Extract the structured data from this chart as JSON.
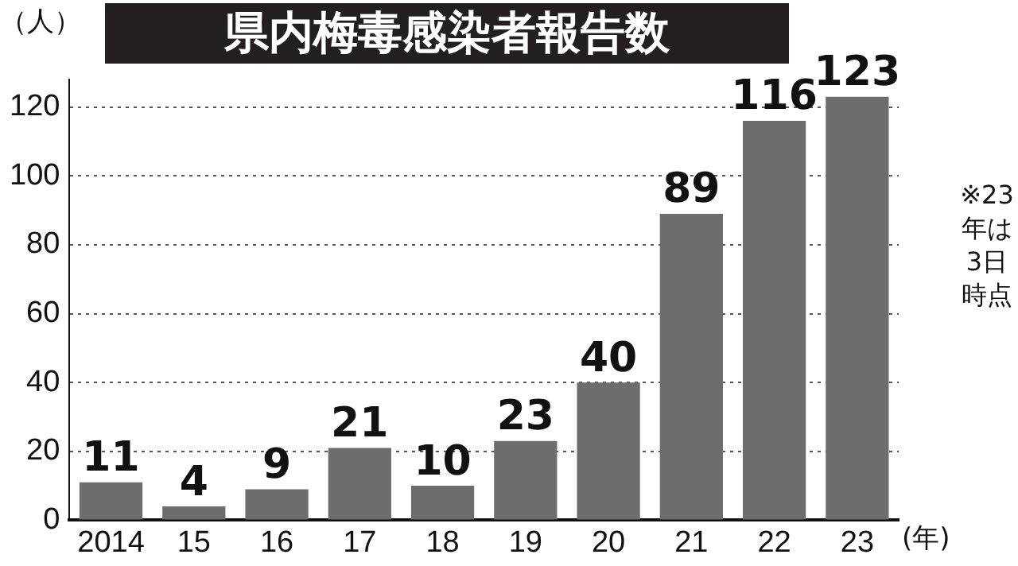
{
  "chart_data": {
    "type": "bar",
    "title": "県内梅毒感染者報告数",
    "ylabel": "（人）",
    "xlabel": "(年)",
    "categories": [
      "2014",
      "15",
      "16",
      "17",
      "18",
      "19",
      "20",
      "21",
      "22",
      "23"
    ],
    "values": [
      11,
      4,
      9,
      21,
      10,
      23,
      40,
      89,
      116,
      123
    ],
    "color": "#6d6d6d",
    "ylim": [
      0,
      128
    ],
    "yticks": [
      0,
      20,
      40,
      60,
      80,
      100,
      120
    ],
    "grid": "y",
    "data_labels": true,
    "legend": false,
    "annotations": [
      "※23年は3日時点"
    ]
  }
}
